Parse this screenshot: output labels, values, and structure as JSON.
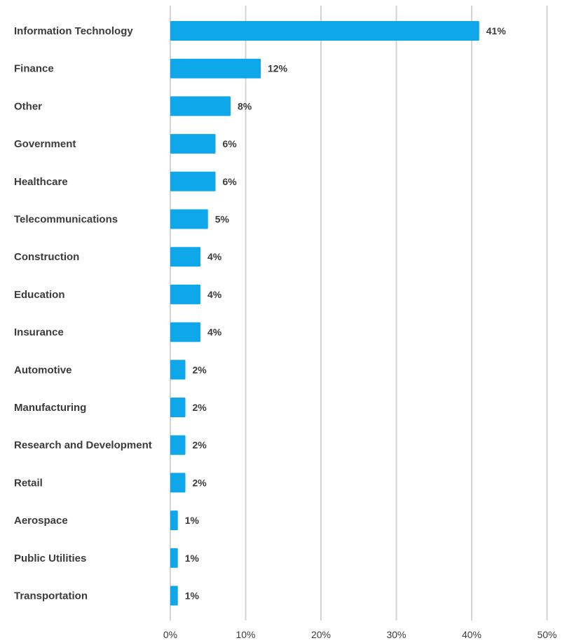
{
  "chart_data": {
    "type": "bar",
    "orientation": "horizontal",
    "categories": [
      "Information Technology",
      "Finance",
      "Other",
      "Government",
      "Healthcare",
      "Telecommunications",
      "Construction",
      "Education",
      "Insurance",
      "Automotive",
      "Manufacturing",
      "Research and Development",
      "Retail",
      "Aerospace",
      "Public Utilities",
      "Transportation"
    ],
    "values": [
      41,
      12,
      8,
      6,
      6,
      5,
      4,
      4,
      4,
      2,
      2,
      2,
      2,
      1,
      1,
      1
    ],
    "data_labels": [
      "41%",
      "12%",
      "8%",
      "6%",
      "6%",
      "5%",
      "4%",
      "4%",
      "4%",
      "2%",
      "2%",
      "2%",
      "2%",
      "1%",
      "1%",
      "1%"
    ],
    "x_ticks": [
      0,
      10,
      20,
      30,
      40,
      50
    ],
    "x_tick_labels": [
      "0%",
      "10%",
      "20%",
      "30%",
      "40%",
      "50%"
    ],
    "xlim": [
      0,
      50
    ],
    "grid": "vertical",
    "bar_color": "#0ea8ea",
    "grid_color": "#d4d4d4",
    "text_color": "#3b3b3b",
    "title": "",
    "xlabel": "",
    "ylabel": ""
  }
}
